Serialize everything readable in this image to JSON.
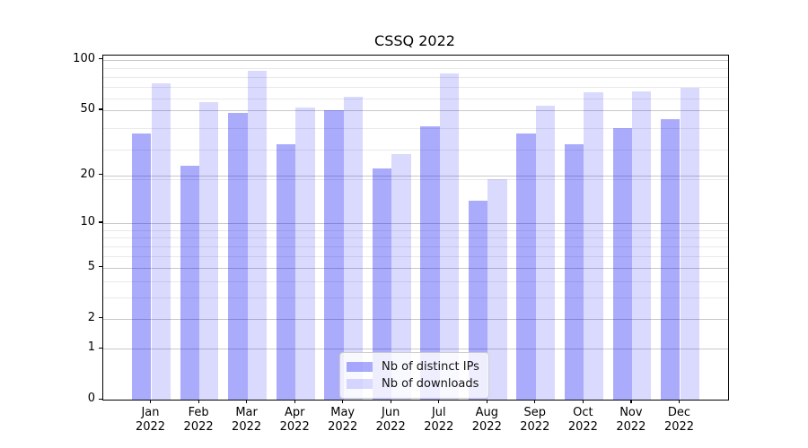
{
  "chart_data": {
    "type": "bar",
    "title": "CSSQ 2022",
    "categories": [
      "Jan",
      "Feb",
      "Mar",
      "Apr",
      "May",
      "Jun",
      "Jul",
      "Aug",
      "Sep",
      "Oct",
      "Nov",
      "Dec"
    ],
    "x_year_label": "2022",
    "series": [
      {
        "name": "Nb of distinct IPs",
        "values": [
          36,
          23,
          48,
          31,
          50,
          22,
          40,
          14,
          36,
          31,
          39,
          44
        ],
        "fill": "rgba(10,10,245,0.34)"
      },
      {
        "name": "Nb of downloads",
        "values": [
          72,
          56,
          86,
          52,
          60,
          27,
          83,
          19,
          53,
          64,
          65,
          68
        ],
        "fill": "rgba(10,10,245,0.15)"
      }
    ],
    "yscale": "log10(value+1)",
    "ylim": [
      0,
      106
    ],
    "y_major_ticks": [
      0,
      1,
      2,
      5,
      10,
      20,
      50,
      100
    ],
    "y_minor_gridlines": [
      3,
      4,
      6,
      7,
      8,
      9,
      19,
      29,
      39,
      59,
      69,
      79,
      89
    ],
    "grid": true,
    "legend_position": "inside-bottom-center",
    "colors": {
      "major_grid": "#c9c9c9",
      "minor_grid": "#e9e9e9",
      "axis": "#000000",
      "background": "#ffffff"
    }
  }
}
